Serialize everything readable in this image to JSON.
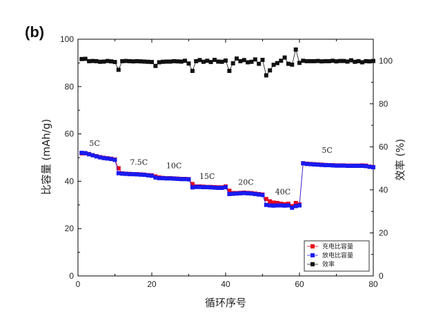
{
  "figure": {
    "panel_label": "(b)"
  },
  "chart_data": {
    "type": "scatter",
    "xlabel": "循环序号",
    "ylabel_left": "比容量 (mAh/g)",
    "ylabel_right": "效率 (%)",
    "xlim": [
      0,
      80
    ],
    "ylim_left": [
      0,
      100
    ],
    "ylim_right": [
      0,
      110
    ],
    "x_ticks": [
      0,
      20,
      40,
      60,
      80
    ],
    "y_left_ticks": [
      0,
      20,
      40,
      60,
      80,
      100
    ],
    "y_right_ticks": [
      0,
      20,
      40,
      60,
      80,
      100
    ],
    "grid": false,
    "legend_position": "bottom-right",
    "rate_labels": [
      {
        "text": "5C",
        "x": 4.5,
        "y": 55
      },
      {
        "text": "7.5C",
        "x": 16.5,
        "y": 47
      },
      {
        "text": "10C",
        "x": 26,
        "y": 45.5
      },
      {
        "text": "15C",
        "x": 35,
        "y": 41
      },
      {
        "text": "20C",
        "x": 45.5,
        "y": 38.5
      },
      {
        "text": "40C",
        "x": 55.5,
        "y": 34.5
      },
      {
        "text": "5C",
        "x": 67.5,
        "y": 52
      }
    ],
    "series": [
      {
        "name": "充电比容量",
        "axis": "left",
        "color": "#e8001c",
        "x": [
          1,
          2,
          3,
          4,
          5,
          6,
          7,
          8,
          9,
          10,
          11,
          12,
          13,
          14,
          15,
          16,
          17,
          18,
          19,
          20,
          21,
          22,
          23,
          24,
          25,
          26,
          27,
          28,
          29,
          30,
          31,
          32,
          33,
          34,
          35,
          36,
          37,
          38,
          39,
          40,
          41,
          42,
          43,
          44,
          45,
          46,
          47,
          48,
          49,
          50,
          51,
          52,
          53,
          54,
          55,
          56,
          57,
          58,
          59,
          60,
          61,
          62,
          63,
          64,
          65,
          66,
          67,
          68,
          69,
          70,
          71,
          72,
          73,
          74,
          75,
          76,
          77,
          78,
          79,
          80
        ],
        "y": [
          51.8,
          51.8,
          51.5,
          51.0,
          50.6,
          50.2,
          49.9,
          49.7,
          49.5,
          49.2,
          45.5,
          43.3,
          43.2,
          43.1,
          43.0,
          43.0,
          42.9,
          42.8,
          42.6,
          42.5,
          42.0,
          41.6,
          41.4,
          41.3,
          41.3,
          41.2,
          41.1,
          41.0,
          41.0,
          40.9,
          38.8,
          37.8,
          37.8,
          37.7,
          37.6,
          37.6,
          37.5,
          37.4,
          37.4,
          37.8,
          36.0,
          35.0,
          35.0,
          35.1,
          35.2,
          35.1,
          35.0,
          34.8,
          34.6,
          34.4,
          32.5,
          31.5,
          31.0,
          30.8,
          30.5,
          30.3,
          30.5,
          29.5,
          30.8,
          30.2,
          47.6,
          47.4,
          47.3,
          47.2,
          47.1,
          47.0,
          46.9,
          46.8,
          46.8,
          46.7,
          46.7,
          46.7,
          46.6,
          46.6,
          46.6,
          46.6,
          46.7,
          46.6,
          46.2,
          46.0
        ]
      },
      {
        "name": "放电比容量",
        "axis": "left",
        "color": "#1a1aee",
        "x": [
          1,
          2,
          3,
          4,
          5,
          6,
          7,
          8,
          9,
          10,
          11,
          12,
          13,
          14,
          15,
          16,
          17,
          18,
          19,
          20,
          21,
          22,
          23,
          24,
          25,
          26,
          27,
          28,
          29,
          30,
          31,
          32,
          33,
          34,
          35,
          36,
          37,
          38,
          39,
          40,
          41,
          42,
          43,
          44,
          45,
          46,
          47,
          48,
          49,
          50,
          51,
          52,
          53,
          54,
          55,
          56,
          57,
          58,
          59,
          60,
          61,
          62,
          63,
          64,
          65,
          66,
          67,
          68,
          69,
          70,
          71,
          72,
          73,
          74,
          75,
          76,
          77,
          78,
          79,
          80
        ],
        "y": [
          52.0,
          51.9,
          51.4,
          51.0,
          50.5,
          50.1,
          49.8,
          49.6,
          49.4,
          49.0,
          43.4,
          43.2,
          43.1,
          43.0,
          43.0,
          42.9,
          42.8,
          42.7,
          42.5,
          42.3,
          41.6,
          41.3,
          41.3,
          41.2,
          41.2,
          41.1,
          41.0,
          40.9,
          40.9,
          40.8,
          37.4,
          37.6,
          37.6,
          37.5,
          37.5,
          37.4,
          37.3,
          37.2,
          37.2,
          37.5,
          34.6,
          34.7,
          34.8,
          34.9,
          35.0,
          34.9,
          34.8,
          34.6,
          34.4,
          34.2,
          30.0,
          29.8,
          29.7,
          29.8,
          29.8,
          29.7,
          29.8,
          28.8,
          29.5,
          29.8,
          47.6,
          47.3,
          47.2,
          47.1,
          47.0,
          46.9,
          46.8,
          46.8,
          46.7,
          46.6,
          46.6,
          46.6,
          46.5,
          46.5,
          46.5,
          46.5,
          46.5,
          46.4,
          46.1,
          45.9
        ]
      },
      {
        "name": "效率",
        "axis": "right",
        "color": "#111111",
        "x": [
          1,
          2,
          3,
          4,
          5,
          6,
          7,
          8,
          9,
          10,
          11,
          12,
          13,
          14,
          15,
          16,
          17,
          18,
          19,
          20,
          21,
          22,
          23,
          24,
          25,
          26,
          27,
          28,
          29,
          30,
          31,
          32,
          33,
          34,
          35,
          36,
          37,
          38,
          39,
          40,
          41,
          42,
          43,
          44,
          45,
          46,
          47,
          48,
          49,
          50,
          51,
          52,
          53,
          54,
          55,
          56,
          57,
          58,
          59,
          60,
          61,
          62,
          63,
          64,
          65,
          66,
          67,
          68,
          69,
          70,
          71,
          72,
          73,
          74,
          75,
          76,
          77,
          78,
          79,
          80
        ],
        "y": [
          100.8,
          100.9,
          99.8,
          99.9,
          99.8,
          99.5,
          99.6,
          99.9,
          99.7,
          99.4,
          95.8,
          99.8,
          99.9,
          99.8,
          99.7,
          99.8,
          99.7,
          99.6,
          99.5,
          99.4,
          97.6,
          99.3,
          99.5,
          99.6,
          99.6,
          99.8,
          99.7,
          99.6,
          100.0,
          98.7,
          95.3,
          99.8,
          100.3,
          99.5,
          100.0,
          99.4,
          100.4,
          99.6,
          99.5,
          100.1,
          95.3,
          98.8,
          101.0,
          99.8,
          100.3,
          99.3,
          99.5,
          100.6,
          98.6,
          100.4,
          93.2,
          95.5,
          98.1,
          98.9,
          100.0,
          101.5,
          98.6,
          98.2,
          105.2,
          99.0,
          100.0,
          99.8,
          99.8,
          99.8,
          99.9,
          99.7,
          99.8,
          99.8,
          100.0,
          99.7,
          99.9,
          99.9,
          99.6,
          100.2,
          99.5,
          99.8,
          99.3,
          99.8,
          99.7,
          99.9
        ]
      }
    ]
  }
}
